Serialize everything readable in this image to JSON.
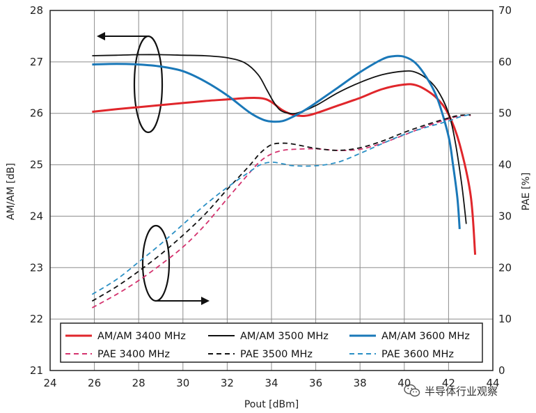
{
  "chart_data": {
    "type": "line",
    "xlabel": "Pout [dBm]",
    "ylabel_left": "AM/AM [dB]",
    "ylabel_right": "PAE [%]",
    "xlim": [
      24,
      44
    ],
    "ylim_left": [
      21,
      28
    ],
    "ylim_right": [
      0,
      70
    ],
    "xticks": [
      "24",
      "26",
      "28",
      "30",
      "32",
      "34",
      "36",
      "38",
      "40",
      "42",
      "44"
    ],
    "yticks_left": [
      "21",
      "22",
      "23",
      "24",
      "25",
      "26",
      "27",
      "28"
    ],
    "yticks_right": [
      "0",
      "10",
      "20",
      "30",
      "40",
      "50",
      "60",
      "70"
    ],
    "grid": true,
    "legend_position": "bottom-inside",
    "series": [
      {
        "name": "AM/AM 3400 MHz",
        "axis": "left",
        "color": "#e0262b",
        "dash": false,
        "x": [
          25.9,
          27,
          28,
          29,
          30,
          31,
          32,
          33,
          33.6,
          34,
          34.5,
          35,
          35.5,
          36,
          37,
          38,
          39,
          40,
          40.5,
          41,
          41.5,
          42,
          42.5,
          43,
          43.2
        ],
        "y": [
          26.03,
          26.08,
          26.12,
          26.16,
          26.2,
          26.24,
          26.27,
          26.3,
          26.29,
          26.22,
          26.06,
          25.97,
          25.95,
          26.0,
          26.15,
          26.3,
          26.47,
          26.56,
          26.55,
          26.45,
          26.28,
          25.98,
          25.4,
          24.4,
          23.25
        ]
      },
      {
        "name": "AM/AM 3500 MHz",
        "axis": "left",
        "color": "#111111",
        "dash": false,
        "x": [
          25.9,
          27,
          28,
          29,
          30,
          31,
          32,
          32.8,
          33.4,
          33.8,
          34.1,
          34.4,
          34.8,
          35.2,
          36,
          37,
          38,
          39,
          40,
          40.5,
          41,
          41.5,
          42,
          42.3,
          42.6,
          42.8
        ],
        "y": [
          27.12,
          27.13,
          27.14,
          27.14,
          27.13,
          27.12,
          27.08,
          26.98,
          26.75,
          26.45,
          26.22,
          26.06,
          26.0,
          26.01,
          26.15,
          26.4,
          26.6,
          26.75,
          26.82,
          26.8,
          26.68,
          26.45,
          26.0,
          25.45,
          24.6,
          23.85
        ]
      },
      {
        "name": "AM/AM 3600 MHz",
        "axis": "left",
        "color": "#1a78b8",
        "dash": false,
        "x": [
          25.9,
          27,
          28,
          29,
          30,
          31,
          32,
          33,
          33.6,
          34,
          34.5,
          35,
          35.5,
          36,
          37,
          38,
          39,
          39.5,
          40,
          40.5,
          41,
          41.5,
          42,
          42.2,
          42.4,
          42.5
        ],
        "y": [
          26.95,
          26.96,
          26.95,
          26.91,
          26.82,
          26.62,
          26.35,
          26.02,
          25.88,
          25.84,
          25.85,
          25.94,
          26.06,
          26.2,
          26.5,
          26.8,
          27.05,
          27.11,
          27.1,
          26.98,
          26.7,
          26.28,
          25.55,
          25.0,
          24.35,
          23.75
        ]
      },
      {
        "name": "PAE 3400 MHz",
        "axis": "right",
        "color": "#d4326e",
        "dash": true,
        "x": [
          25.9,
          27,
          28,
          29,
          30,
          31,
          32,
          33,
          33.5,
          34,
          34.5,
          35,
          36,
          37,
          38,
          39,
          40,
          41,
          42,
          42.5,
          43
        ],
        "y": [
          12.2,
          14.8,
          17.5,
          20.6,
          24,
          28.3,
          33.4,
          38.4,
          40.7,
          42.1,
          42.8,
          43.0,
          43.1,
          42.8,
          43.0,
          44.2,
          45.8,
          47.5,
          48.9,
          49.5,
          49.6
        ]
      },
      {
        "name": "PAE 3500 MHz",
        "axis": "right",
        "color": "#111111",
        "dash": true,
        "x": [
          25.9,
          27,
          28,
          29,
          30,
          31,
          32,
          33,
          33.5,
          34,
          34.5,
          35,
          36,
          37,
          38,
          39,
          40,
          41,
          42,
          42.5,
          43
        ],
        "y": [
          13.5,
          16.3,
          19.3,
          22.6,
          26.3,
          30.4,
          35.2,
          39.8,
          42.3,
          43.9,
          44.2,
          44.0,
          43.2,
          42.8,
          43.3,
          44.6,
          46.3,
          47.8,
          49.1,
          49.6,
          49.7
        ]
      },
      {
        "name": "PAE 3600 MHz",
        "axis": "right",
        "color": "#2a8fc4",
        "dash": true,
        "x": [
          25.9,
          27,
          28,
          29,
          30,
          31,
          32,
          33,
          33.5,
          34,
          34.5,
          35,
          36,
          37,
          38,
          39,
          40,
          41,
          42,
          42.5,
          43
        ],
        "y": [
          14.8,
          17.7,
          21.1,
          24.6,
          28.4,
          32.2,
          35.6,
          38.6,
          40.0,
          40.5,
          40.2,
          39.8,
          39.8,
          40.5,
          42.2,
          44.1,
          45.9,
          47.3,
          48.5,
          49.3,
          49.8
        ]
      }
    ]
  },
  "watermark": {
    "text": "半导体行业观察"
  }
}
